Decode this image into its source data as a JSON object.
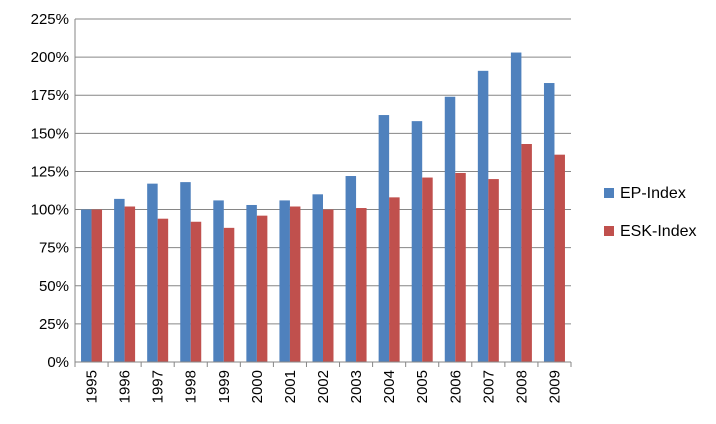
{
  "chart_data": {
    "type": "bar",
    "categories": [
      "1995",
      "1996",
      "1997",
      "1998",
      "1999",
      "2000",
      "2001",
      "2002",
      "2003",
      "2004",
      "2005",
      "2006",
      "2007",
      "2008",
      "2009"
    ],
    "series": [
      {
        "name": "EP-Index",
        "color": "#4F81BD",
        "values": [
          100,
          107,
          117,
          118,
          106,
          103,
          106,
          110,
          122,
          162,
          158,
          174,
          191,
          203,
          183
        ]
      },
      {
        "name": "ESK-Index",
        "color": "#C0504D",
        "values": [
          100,
          102,
          94,
          92,
          88,
          96,
          102,
          100,
          101,
          108,
          121,
          124,
          120,
          143,
          136
        ]
      }
    ],
    "y_ticks": [
      "0%",
      "25%",
      "50%",
      "75%",
      "100%",
      "125%",
      "150%",
      "175%",
      "200%",
      "225%"
    ],
    "ylim": [
      0,
      225
    ],
    "y_unit": "%",
    "grid": true,
    "legend_position": "right"
  }
}
